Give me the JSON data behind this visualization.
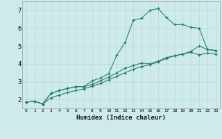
{
  "xlabel": "Humidex (Indice chaleur)",
  "bg_color": "#ceeaea",
  "line_color": "#1e7a6e",
  "grid_color": "#b8d8d8",
  "xlim": [
    -0.5,
    23.5
  ],
  "ylim": [
    1.5,
    7.5
  ],
  "xticks": [
    0,
    1,
    2,
    3,
    4,
    5,
    6,
    7,
    8,
    9,
    10,
    11,
    12,
    13,
    14,
    15,
    16,
    17,
    18,
    19,
    20,
    21,
    22,
    23
  ],
  "yticks": [
    2,
    3,
    4,
    5,
    6,
    7
  ],
  "series1_x": [
    0,
    1,
    2,
    3,
    4,
    5,
    6,
    7,
    8,
    9,
    10,
    11,
    12,
    13,
    14,
    15,
    16,
    17,
    18,
    19,
    20,
    21,
    22,
    23
  ],
  "series1_y": [
    1.85,
    1.9,
    1.75,
    2.35,
    2.5,
    2.62,
    2.72,
    2.72,
    3.05,
    3.2,
    3.45,
    4.5,
    5.2,
    6.45,
    6.55,
    7.0,
    7.1,
    6.6,
    6.2,
    6.2,
    6.05,
    6.0,
    4.8,
    4.75
  ],
  "series2_x": [
    0,
    1,
    2,
    3,
    4,
    5,
    6,
    7,
    8,
    9,
    10,
    11,
    12,
    13,
    14,
    15,
    16,
    17,
    18,
    19,
    20,
    21,
    22,
    23
  ],
  "series2_y": [
    1.85,
    1.9,
    1.75,
    2.35,
    2.5,
    2.62,
    2.72,
    2.72,
    2.85,
    3.05,
    3.25,
    3.5,
    3.75,
    3.9,
    4.05,
    4.0,
    4.15,
    4.35,
    4.45,
    4.55,
    4.7,
    5.0,
    4.8,
    4.75
  ],
  "series3_x": [
    0,
    1,
    2,
    3,
    4,
    5,
    6,
    7,
    8,
    9,
    10,
    11,
    12,
    13,
    14,
    15,
    16,
    17,
    18,
    19,
    20,
    21,
    22,
    23
  ],
  "series3_y": [
    1.85,
    1.9,
    1.75,
    2.1,
    2.25,
    2.4,
    2.5,
    2.6,
    2.75,
    2.9,
    3.1,
    3.3,
    3.5,
    3.7,
    3.85,
    3.95,
    4.1,
    4.3,
    4.45,
    4.55,
    4.65,
    4.5,
    4.6,
    4.55
  ]
}
